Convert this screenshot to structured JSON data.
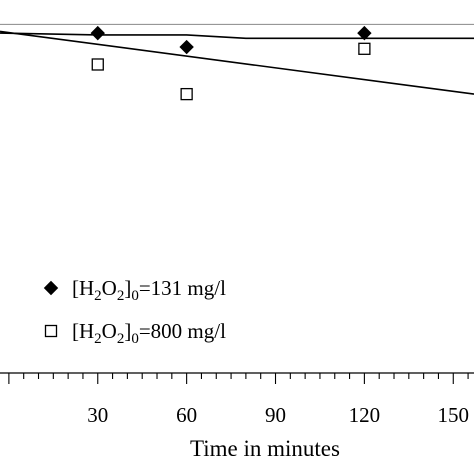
{
  "chart_data": {
    "type": "scatter",
    "title": "",
    "xlabel": "Time in minutes",
    "ylabel": "",
    "x_ticks": [
      30,
      60,
      90,
      120,
      150
    ],
    "x_tick_labels": [
      "30",
      "60",
      "90",
      "120",
      "150"
    ],
    "x_minor_step": 5,
    "xlim": [
      -3,
      157
    ],
    "ylim": [
      0,
      1.07
    ],
    "y_reference": 1.0,
    "legend_position": "bottom-left",
    "series": [
      {
        "name": "[H2O2]0=131 mg/l",
        "name_parts": [
          "[H",
          "2",
          "O",
          "2",
          "]",
          "0",
          "=131 mg/l"
        ],
        "marker": "diamond-filled",
        "x": [
          30,
          60,
          120
        ],
        "y": [
          0.975,
          0.935,
          0.975
        ]
      },
      {
        "name": "[H2O2]0=800 mg/l",
        "name_parts": [
          "[H",
          "2",
          "O",
          "2",
          "]",
          "0",
          "=800 mg/l"
        ],
        "marker": "square-open",
        "x": [
          30,
          60,
          120
        ],
        "y": [
          0.885,
          0.8,
          0.93
        ]
      }
    ],
    "fit_lines": [
      {
        "x": [
          -3,
          30,
          60,
          80,
          120,
          157
        ],
        "y": [
          0.975,
          0.97,
          0.97,
          0.96,
          0.96,
          0.96
        ]
      },
      {
        "x": [
          -3,
          157
        ],
        "y": [
          0.98,
          0.8
        ]
      }
    ]
  }
}
